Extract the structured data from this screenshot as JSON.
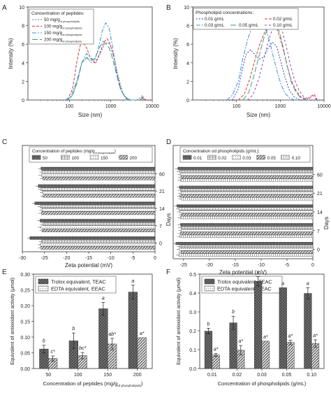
{
  "panels": {
    "A": {
      "letter": "A"
    },
    "B": {
      "letter": "B"
    },
    "C": {
      "letter": "C"
    },
    "D": {
      "letter": "D"
    },
    "E": {
      "letter": "E"
    },
    "F": {
      "letter": "F"
    }
  },
  "chart_data": [
    {
      "panel": "A",
      "type": "line",
      "xscale": "log",
      "xlabel": "Size (nm)",
      "ylabel": "Intensity (%)",
      "xlim": [
        10,
        10000
      ],
      "ylim": [
        0,
        10
      ],
      "xticks": [
        "100",
        "1000",
        "10000"
      ],
      "yticks": [
        "0",
        "2",
        "4",
        "6",
        "8",
        "10"
      ],
      "legend_title": "Concentration of peptides:",
      "legend_position": "top-left",
      "series": [
        {
          "name": "50 mg/g",
          "name_sub": "of phospholipids",
          "color": "#6a6ad0",
          "dash": "2,2",
          "x": [
            90,
            120,
            160,
            200,
            260,
            340,
            440,
            560,
            700,
            850,
            1000,
            1200,
            1500,
            1900,
            2400,
            3200,
            4200,
            5000,
            5800,
            6400,
            7200
          ],
          "y": [
            0,
            0.5,
            2.2,
            4.0,
            4.5,
            4.0,
            4.0,
            5.0,
            6.0,
            6.2,
            5.8,
            4.6,
            2.6,
            0.9,
            0.1,
            0,
            0,
            0.2,
            0.5,
            0.1,
            0
          ]
        },
        {
          "name": "100 mg/g",
          "name_sub": "of phospholipids",
          "color": "#d33a3a",
          "dash": "4,2",
          "x": [
            90,
            120,
            150,
            180,
            210,
            260,
            330,
            420,
            540,
            680,
            820,
            960,
            1150,
            1400,
            1800,
            2300,
            3000,
            5000,
            5800,
            6400,
            7200
          ],
          "y": [
            0,
            1.2,
            4.0,
            5.8,
            6.3,
            5.6,
            4.4,
            4.0,
            5.0,
            6.2,
            6.6,
            6.0,
            4.8,
            2.9,
            1.0,
            0.2,
            0,
            0,
            0.3,
            0.1,
            0
          ]
        },
        {
          "name": "150 mg/g",
          "name_sub": "of phospholipids",
          "color": "#3a8fd6",
          "dash": "6,2,2,2",
          "x": [
            80,
            110,
            150,
            200,
            260,
            320,
            400,
            500,
            620,
            750,
            900,
            1100,
            1350,
            1700,
            2200,
            2800,
            3500
          ],
          "y": [
            0,
            0.4,
            2.0,
            4.0,
            5.0,
            4.6,
            4.2,
            5.5,
            7.4,
            8.3,
            7.8,
            5.8,
            3.2,
            1.2,
            0.3,
            0,
            0
          ]
        },
        {
          "name": "200 mg/g",
          "name_sub": "of phospholipids",
          "color": "#3aa57a",
          "dash": "8,3",
          "x": [
            90,
            120,
            160,
            200,
            260,
            330,
            420,
            530,
            650,
            780,
            920,
            1080,
            1300,
            1600,
            2000,
            2600,
            3400,
            5000,
            5800,
            6400,
            7200
          ],
          "y": [
            0,
            0.5,
            2.1,
            4.0,
            4.6,
            4.2,
            4.5,
            5.6,
            6.3,
            6.0,
            5.6,
            4.6,
            3.2,
            1.6,
            0.6,
            0.1,
            0,
            0,
            0.2,
            0.05,
            0
          ]
        }
      ]
    },
    {
      "panel": "B",
      "type": "line",
      "xscale": "log",
      "xlabel": "Size (nm)",
      "ylabel": "Intensity (%)",
      "xlim": [
        10,
        10000
      ],
      "ylim": [
        0,
        10
      ],
      "xticks": [
        "100",
        "1000",
        "10000"
      ],
      "yticks": [
        "0",
        "2",
        "4",
        "6",
        "8",
        "10"
      ],
      "legend_title": "Phospholipid concentrations:",
      "legend_position": "top-left",
      "series": [
        {
          "name": "0.01 g/mL",
          "color": "#3a3ad0",
          "dash": "2,2",
          "x": [
            80,
            110,
            140,
            170,
            210,
            260,
            330,
            420,
            530,
            660,
            820,
            1000,
            1250,
            1600,
            2100,
            2800,
            3600
          ],
          "y": [
            0,
            1.2,
            3.6,
            5.0,
            5.4,
            4.9,
            4.4,
            4.6,
            5.6,
            6.2,
            5.8,
            4.4,
            2.6,
            1.1,
            0.3,
            0,
            0
          ]
        },
        {
          "name": "0.02 g/mL",
          "color": "#d33a3a",
          "dash": "4,2",
          "x": [
            110,
            150,
            200,
            260,
            340,
            440,
            560,
            700,
            850,
            1000,
            1200,
            1450,
            1800,
            2300,
            3000,
            4000,
            5000,
            6000,
            7000
          ],
          "y": [
            0,
            0.6,
            2.2,
            4.2,
            6.0,
            7.3,
            8.0,
            8.2,
            7.6,
            6.6,
            5.2,
            3.6,
            2.1,
            1.0,
            0.3,
            0.1,
            0.4,
            0.6,
            0
          ]
        },
        {
          "name": "0.03 g/mL",
          "color": "#3a8fd6",
          "dash": "6,2,2,2",
          "x": [
            60,
            80,
            110,
            140,
            180,
            230,
            300,
            380,
            470,
            580,
            700,
            860,
            1050,
            1300,
            1650,
            2100,
            2700
          ],
          "y": [
            0,
            0.5,
            2.0,
            4.5,
            6.5,
            8.0,
            8.6,
            8.4,
            7.6,
            6.2,
            4.6,
            3.0,
            1.6,
            0.7,
            0.2,
            0,
            0
          ]
        },
        {
          "name": "0.05 g/mL",
          "color": "#3aa57a",
          "dash": "8,3",
          "x": [
            140,
            190,
            250,
            330,
            430,
            560,
            700,
            850,
            1000,
            1200,
            1450,
            1800,
            2300,
            3000,
            4000
          ],
          "y": [
            0,
            0.8,
            2.6,
            4.8,
            6.8,
            8.0,
            8.4,
            8.0,
            7.0,
            5.4,
            3.6,
            1.9,
            0.8,
            0.2,
            0
          ]
        },
        {
          "name": "0.10 g/mL",
          "color": "#9a3ad0",
          "dash": "3,3",
          "x": [
            180,
            240,
            320,
            420,
            540,
            680,
            820,
            980,
            1150,
            1400,
            1700,
            2100,
            2700,
            3500,
            4500,
            5600,
            6800
          ],
          "y": [
            0,
            0.6,
            2.2,
            4.4,
            6.4,
            7.8,
            8.4,
            8.2,
            7.2,
            5.6,
            3.8,
            2.2,
            1.0,
            0.3,
            0.1,
            0.5,
            0
          ]
        }
      ]
    },
    {
      "panel": "C",
      "type": "bar",
      "orientation": "horizontal",
      "xlabel": "Zeta potential (mV)",
      "ylabel": "Days",
      "xlim": [
        -30,
        0
      ],
      "xticks": [
        "-30",
        "-25",
        "-20",
        "-15",
        "-10",
        "-5",
        "0"
      ],
      "categories": [
        "0",
        "7",
        "14",
        "21",
        "60"
      ],
      "legend_title": "Concentration of peptides (mg/g",
      "legend_title_sub": "of phospholipids",
      "legend_title_end": ")",
      "legend_position": "top",
      "series": [
        {
          "name": "50",
          "pattern": "dense",
          "values": [
            -28.3,
            -26.0,
            -27.2,
            -26.4,
            -25.8
          ]
        },
        {
          "name": "100",
          "pattern": "grid",
          "values": [
            -25.6,
            -25.3,
            -25.9,
            -25.8,
            -25.5
          ]
        },
        {
          "name": "150",
          "pattern": "light",
          "values": [
            -25.9,
            -25.8,
            -25.5,
            -25.4,
            -25.7
          ]
        },
        {
          "name": "200",
          "pattern": "diag",
          "values": [
            -25.8,
            -25.5,
            -25.7,
            -25.3,
            -25.4
          ]
        }
      ]
    },
    {
      "panel": "D",
      "type": "bar",
      "orientation": "horizontal",
      "xlabel": "Zeta potential (mV)",
      "ylabel": "Days",
      "xlim": [
        -27,
        0
      ],
      "xticks": [
        "-25",
        "-20",
        "-15",
        "-10",
        "-5",
        "0"
      ],
      "categories": [
        "0",
        "7",
        "14",
        "21",
        "60"
      ],
      "legend_title": "Concentration od phospholipids (g/mL):",
      "legend_position": "top",
      "series": [
        {
          "name": "0.01",
          "pattern": "dense",
          "values": [
            -26.5,
            -25.6,
            -26.3,
            -25.8,
            -26.1
          ]
        },
        {
          "name": "0.02",
          "pattern": "grid",
          "values": [
            -25.7,
            -25.5,
            -25.9,
            -25.6,
            -25.8
          ]
        },
        {
          "name": "0.03",
          "pattern": "light",
          "values": [
            -25.8,
            -25.4,
            -25.7,
            -25.5,
            -25.6
          ]
        },
        {
          "name": "0.05",
          "pattern": "diag",
          "values": [
            -25.5,
            -25.6,
            -25.4,
            -25.7,
            -25.5
          ]
        },
        {
          "name": "0.10",
          "pattern": "vert",
          "values": [
            -25.9,
            -25.7,
            -25.6,
            -25.4,
            -25.6
          ]
        }
      ]
    },
    {
      "panel": "E",
      "type": "bar",
      "xlabel": "Concentration of peptides (mg/g",
      "xlabel_sub": "of phospholipids",
      "xlabel_end": ")",
      "ylabel": "Equivalent of antioxidant activity (μmol)",
      "ylim": [
        0,
        0.3
      ],
      "yticks": [
        "0.00",
        "0.05",
        "0.10",
        "0.15",
        "0.20",
        "0.25",
        "0.30"
      ],
      "categories": [
        "50",
        "100",
        "150",
        "200"
      ],
      "legend_position": "top-left",
      "series": [
        {
          "name": "Trolox equivalent, TEAC",
          "pattern": "dark",
          "values": [
            0.062,
            0.088,
            0.19,
            0.243
          ],
          "errors": [
            0.012,
            0.025,
            0.02,
            0.022
          ],
          "labels": [
            "b",
            "b",
            "a",
            "a"
          ]
        },
        {
          "name": "EDTA equivalent, EEAC",
          "pattern": "light",
          "values": [
            0.032,
            0.041,
            0.078,
            0.098
          ],
          "errors": [
            0.008,
            0.01,
            0.018,
            0.0
          ],
          "labels": [
            "c*",
            "bc*",
            "ab*",
            "a*"
          ]
        }
      ]
    },
    {
      "panel": "F",
      "type": "bar",
      "xlabel": "Concentration of phospholipids (g/mL)",
      "ylabel": "Equivalent of antioxidant activity (μmol)",
      "ylim": [
        0,
        0.5
      ],
      "yticks": [
        "0.0",
        "0.1",
        "0.2",
        "0.3",
        "0.4",
        "0.5"
      ],
      "categories": [
        "0.01",
        "0.02",
        "0.03",
        "0.05",
        "0.10"
      ],
      "legend_position": "top-left",
      "series": [
        {
          "name": "Trolox equivalent, TEAC",
          "pattern": "dark",
          "values": [
            0.198,
            0.242,
            0.462,
            0.428,
            0.398
          ],
          "errors": [
            0.015,
            0.035,
            0.025,
            0.0,
            0.03
          ],
          "labels": [
            "b",
            "b",
            "a",
            "a",
            "a"
          ]
        },
        {
          "name": "EDTA equivalent, EEAC",
          "pattern": "light",
          "values": [
            0.072,
            0.097,
            0.145,
            0.138,
            0.132
          ],
          "errors": [
            0.008,
            0.025,
            0.0,
            0.012,
            0.02
          ],
          "labels": [
            "a*",
            "a*",
            "a*",
            "a*",
            "a*"
          ]
        }
      ]
    }
  ]
}
